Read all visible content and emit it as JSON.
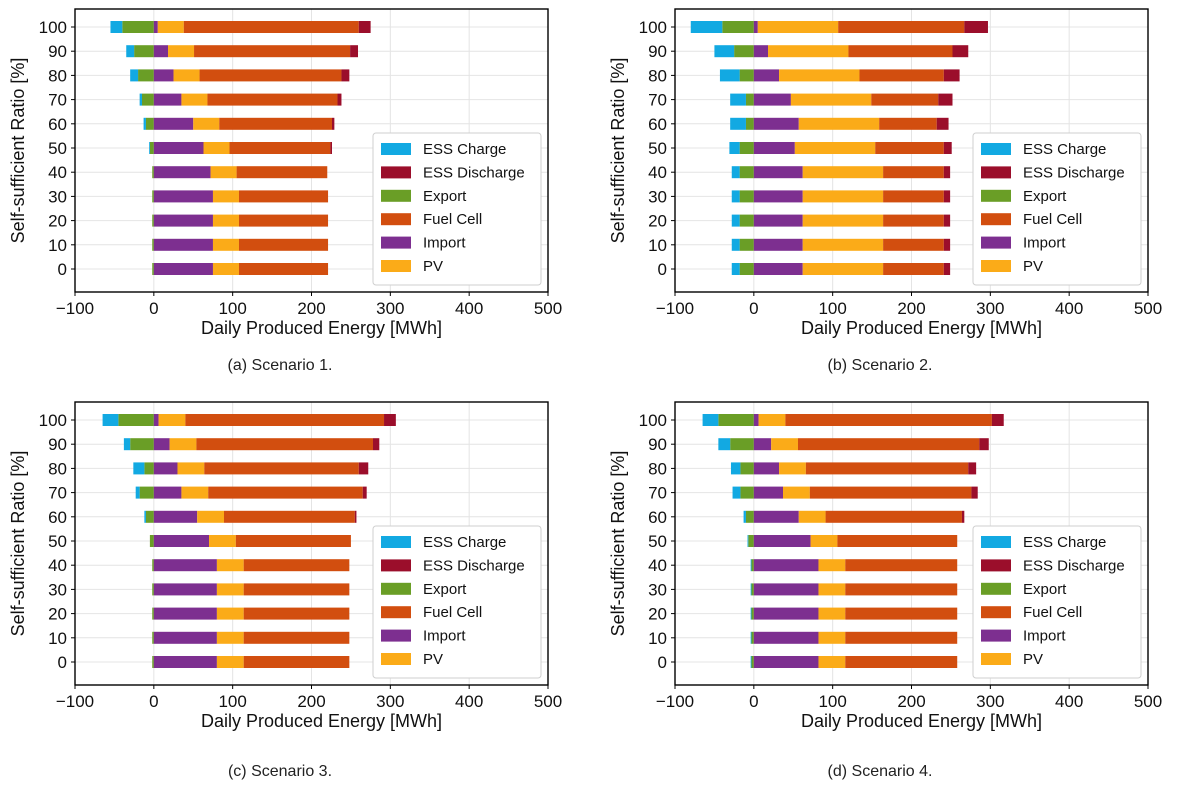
{
  "legend": [
    "ESS Charge",
    "ESS Discharge",
    "Export",
    "Fuel Cell",
    "Import",
    "PV"
  ],
  "colors": {
    "ESS Charge": "#12a9e2",
    "ESS Discharge": "#9b0e2b",
    "Export": "#6a9e26",
    "Fuel Cell": "#d24e0f",
    "Import": "#7d2f90",
    "PV": "#fbab18"
  },
  "chart_data": [
    {
      "type": "bar",
      "orientation": "horizontal-stacked",
      "caption": "(a) Scenario 1.",
      "xlabel": "Daily Produced Energy [MWh]",
      "ylabel": "Self-sufficient Ratio [%]",
      "xlim": [
        -100,
        500
      ],
      "xticks": [
        "−100",
        "0",
        "100",
        "200",
        "300",
        "400",
        "500"
      ],
      "categories": [
        "0",
        "10",
        "20",
        "30",
        "40",
        "50",
        "60",
        "70",
        "80",
        "90",
        "100"
      ],
      "grid": true,
      "legend_position": "bottom-right",
      "series": [
        {
          "name": "Export",
          "values": [
            -2,
            -2,
            -2,
            -2,
            -2,
            -5,
            -10,
            -15,
            -20,
            -25,
            -40
          ]
        },
        {
          "name": "ESS Charge",
          "values": [
            0,
            0,
            0,
            0,
            0,
            -1,
            -3,
            -3,
            -10,
            -10,
            -15
          ]
        },
        {
          "name": "Import",
          "values": [
            75,
            75,
            75,
            75,
            72,
            63,
            50,
            35,
            25,
            18,
            5
          ]
        },
        {
          "name": "PV",
          "values": [
            33,
            33,
            33,
            33,
            33,
            33,
            33,
            33,
            33,
            33,
            33
          ]
        },
        {
          "name": "Fuel Cell",
          "values": [
            113,
            113,
            113,
            113,
            115,
            128,
            143,
            165,
            180,
            198,
            222
          ]
        },
        {
          "name": "ESS Discharge",
          "values": [
            0,
            0,
            0,
            0,
            0,
            2,
            3,
            5,
            10,
            10,
            15
          ]
        }
      ]
    },
    {
      "type": "bar",
      "orientation": "horizontal-stacked",
      "caption": "(b) Scenario 2.",
      "xlabel": "Daily Produced Energy [MWh]",
      "ylabel": "Self-sufficient Ratio [%]",
      "xlim": [
        -100,
        500
      ],
      "xticks": [
        "−100",
        "0",
        "100",
        "200",
        "300",
        "400",
        "500"
      ],
      "categories": [
        "0",
        "10",
        "20",
        "30",
        "40",
        "50",
        "60",
        "70",
        "80",
        "90",
        "100"
      ],
      "grid": true,
      "legend_position": "bottom-right",
      "series": [
        {
          "name": "Export",
          "values": [
            -18,
            -18,
            -18,
            -18,
            -18,
            -18,
            -10,
            -10,
            -18,
            -25,
            -40
          ]
        },
        {
          "name": "ESS Charge",
          "values": [
            -10,
            -10,
            -10,
            -10,
            -10,
            -13,
            -20,
            -20,
            -25,
            -25,
            -40
          ]
        },
        {
          "name": "Import",
          "values": [
            62,
            62,
            62,
            62,
            62,
            52,
            57,
            47,
            32,
            18,
            5
          ]
        },
        {
          "name": "PV",
          "values": [
            102,
            102,
            102,
            102,
            102,
            102,
            102,
            102,
            102,
            102,
            102
          ]
        },
        {
          "name": "Fuel Cell",
          "values": [
            77,
            77,
            77,
            77,
            77,
            87,
            73,
            85,
            107,
            132,
            160
          ]
        },
        {
          "name": "ESS Discharge",
          "values": [
            8,
            8,
            8,
            8,
            8,
            10,
            15,
            18,
            20,
            20,
            30
          ]
        }
      ]
    },
    {
      "type": "bar",
      "orientation": "horizontal-stacked",
      "caption": "(c) Scenario 3.",
      "xlabel": "Daily Produced Energy [MWh]",
      "ylabel": "Self-sufficient Ratio [%]",
      "xlim": [
        -100,
        500
      ],
      "xticks": [
        "−100",
        "0",
        "100",
        "200",
        "300",
        "400",
        "500"
      ],
      "categories": [
        "0",
        "10",
        "20",
        "30",
        "40",
        "50",
        "60",
        "70",
        "80",
        "90",
        "100"
      ],
      "grid": true,
      "legend_position": "bottom-right",
      "series": [
        {
          "name": "Export",
          "values": [
            -2,
            -2,
            -2,
            -2,
            -2,
            -5,
            -10,
            -18,
            -12,
            -30,
            -45
          ]
        },
        {
          "name": "ESS Charge",
          "values": [
            0,
            0,
            0,
            0,
            0,
            0,
            -2,
            -5,
            -14,
            -8,
            -20
          ]
        },
        {
          "name": "Import",
          "values": [
            80,
            80,
            80,
            80,
            80,
            70,
            55,
            35,
            30,
            20,
            6
          ]
        },
        {
          "name": "PV",
          "values": [
            34,
            34,
            34,
            34,
            34,
            34,
            34,
            34,
            34,
            34,
            34
          ]
        },
        {
          "name": "Fuel Cell",
          "values": [
            134,
            134,
            134,
            134,
            134,
            146,
            166,
            196,
            196,
            224,
            252
          ]
        },
        {
          "name": "ESS Discharge",
          "values": [
            0,
            0,
            0,
            0,
            0,
            0,
            2,
            5,
            12,
            8,
            15
          ]
        }
      ]
    },
    {
      "type": "bar",
      "orientation": "horizontal-stacked",
      "caption": "(d) Scenario 4.",
      "xlabel": "Daily Produced Energy [MWh]",
      "ylabel": "Self-sufficient Ratio [%]",
      "xlim": [
        -100,
        500
      ],
      "xticks": [
        "−100",
        "0",
        "100",
        "200",
        "300",
        "400",
        "500"
      ],
      "categories": [
        "0",
        "10",
        "20",
        "30",
        "40",
        "50",
        "60",
        "70",
        "80",
        "90",
        "100"
      ],
      "grid": true,
      "legend_position": "bottom-right",
      "series": [
        {
          "name": "Export",
          "values": [
            -3,
            -3,
            -3,
            -3,
            -3,
            -7,
            -10,
            -17,
            -17,
            -30,
            -45
          ]
        },
        {
          "name": "ESS Charge",
          "values": [
            -1,
            -1,
            -1,
            -1,
            -1,
            -1,
            -3,
            -10,
            -12,
            -15,
            -20
          ]
        },
        {
          "name": "Import",
          "values": [
            82,
            82,
            82,
            82,
            82,
            72,
            57,
            37,
            32,
            22,
            6
          ]
        },
        {
          "name": "PV",
          "values": [
            34,
            34,
            34,
            34,
            34,
            34,
            34,
            34,
            34,
            34,
            34
          ]
        },
        {
          "name": "Fuel Cell",
          "values": [
            142,
            142,
            142,
            142,
            142,
            152,
            173,
            205,
            206,
            230,
            262
          ]
        },
        {
          "name": "ESS Discharge",
          "values": [
            0,
            0,
            0,
            0,
            0,
            0,
            3,
            8,
            10,
            12,
            15
          ]
        }
      ]
    }
  ]
}
